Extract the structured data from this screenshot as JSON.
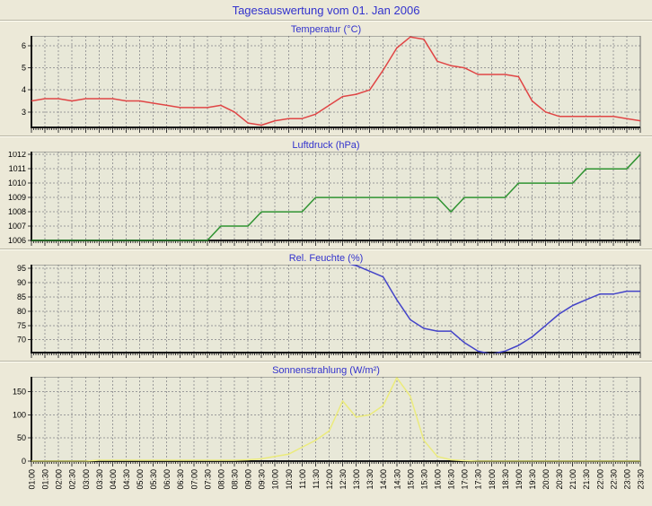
{
  "title": "Tagesauswertung vom 01. Jan 2006",
  "colors": {
    "background": "#ece9d8",
    "title_text": "#3232cd",
    "axis": "#141414",
    "gridline": "#9a9a9a"
  },
  "chart_data": {
    "type": "line",
    "plot_bg": "#e8e8d8",
    "categories": [
      "01:00",
      "01:30",
      "02:00",
      "02:30",
      "03:00",
      "03:30",
      "04:00",
      "04:30",
      "05:00",
      "05:30",
      "06:00",
      "06:30",
      "07:00",
      "07:30",
      "08:00",
      "08:30",
      "09:00",
      "09:30",
      "10:00",
      "10:30",
      "11:00",
      "11:30",
      "12:00",
      "12:30",
      "13:00",
      "13:30",
      "14:00",
      "14:30",
      "15:00",
      "15:30",
      "16:00",
      "16:30",
      "17:00",
      "17:30",
      "18:00",
      "18:30",
      "19:00",
      "19:30",
      "20:00",
      "20:30",
      "21:00",
      "21:30",
      "22:00",
      "22:30",
      "23:00",
      "23:30"
    ],
    "charts": [
      {
        "title": "Temperatur (°C)",
        "color": "#e04545",
        "ylim": [
          2.3,
          6.45
        ],
        "yticks": [
          3,
          4,
          5,
          6
        ],
        "values": [
          3.5,
          3.6,
          3.6,
          3.5,
          3.6,
          3.6,
          3.6,
          3.5,
          3.5,
          3.4,
          3.3,
          3.2,
          3.2,
          3.2,
          3.3,
          3.0,
          2.5,
          2.4,
          2.6,
          2.7,
          2.7,
          2.9,
          3.3,
          3.7,
          3.8,
          4.0,
          4.9,
          5.9,
          6.4,
          6.3,
          5.3,
          5.1,
          5.0,
          4.7,
          4.7,
          4.7,
          4.6,
          3.5,
          3.0,
          2.8,
          2.8,
          2.8,
          2.8,
          2.8,
          2.7,
          2.6
        ]
      },
      {
        "title": "Luftdruck (hPa)",
        "color": "#2f9331",
        "ylim": [
          1006,
          1012.2
        ],
        "yticks": [
          1006,
          1007,
          1008,
          1009,
          1010,
          1011,
          1012
        ],
        "values": [
          1006,
          1006,
          1006,
          1006,
          1006,
          1006,
          1006,
          1006,
          1006,
          1006,
          1006,
          1006,
          1006,
          1006,
          1007,
          1007,
          1007,
          1008,
          1008,
          1008,
          1008,
          1009,
          1009,
          1009,
          1009,
          1009,
          1009,
          1009,
          1009,
          1009,
          1009,
          1008,
          1009,
          1009,
          1009,
          1009,
          1010,
          1010,
          1010,
          1010,
          1010,
          1011,
          1011,
          1011,
          1011,
          1012
        ]
      },
      {
        "title": "Rel. Feuchte (%)",
        "color": "#4343c8",
        "ylim": [
          65.5,
          96.3
        ],
        "yticks": [
          70,
          75,
          80,
          85,
          90,
          95
        ],
        "values": [
          97,
          97,
          97,
          97,
          97,
          97,
          97,
          97,
          97,
          97,
          97,
          97,
          97,
          97,
          97,
          97,
          97,
          97,
          97,
          97,
          97,
          97,
          97,
          97,
          96,
          94,
          92,
          84,
          77,
          74,
          73,
          73,
          69,
          66,
          65,
          66,
          68,
          71,
          75,
          79,
          82,
          84,
          86,
          86,
          87,
          87
        ]
      },
      {
        "title": "Sonnenstrahlung (W/m²)",
        "color": "#ebeb7c",
        "ylim": [
          0,
          182
        ],
        "yticks": [
          0,
          50,
          100,
          150
        ],
        "values": [
          0,
          0,
          0,
          0,
          0,
          2,
          2,
          2,
          2,
          2,
          2,
          2,
          2,
          2,
          2,
          2,
          3,
          5,
          10,
          15,
          30,
          45,
          65,
          130,
          95,
          100,
          120,
          180,
          140,
          45,
          10,
          3,
          1,
          0,
          0,
          0,
          0,
          0,
          0,
          0,
          0,
          0,
          0,
          0,
          0,
          0
        ]
      }
    ]
  }
}
